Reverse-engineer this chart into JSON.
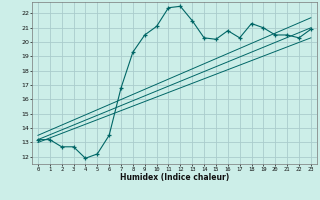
{
  "title": "",
  "xlabel": "Humidex (Indice chaleur)",
  "bg_color": "#cceee8",
  "grid_color": "#aacccc",
  "line_color": "#006666",
  "xlim": [
    -0.5,
    23.5
  ],
  "ylim": [
    11.5,
    22.8
  ],
  "xticks": [
    0,
    1,
    2,
    3,
    4,
    5,
    6,
    7,
    8,
    9,
    10,
    11,
    12,
    13,
    14,
    15,
    16,
    17,
    18,
    19,
    20,
    21,
    22,
    23
  ],
  "yticks": [
    12,
    13,
    14,
    15,
    16,
    17,
    18,
    19,
    20,
    21,
    22
  ],
  "main_x": [
    0,
    1,
    2,
    3,
    4,
    5,
    6,
    7,
    8,
    9,
    10,
    11,
    12,
    13,
    14,
    15,
    16,
    17,
    18,
    19,
    20,
    21,
    22,
    23
  ],
  "main_y": [
    13.2,
    13.2,
    12.7,
    12.7,
    11.9,
    12.2,
    13.5,
    16.8,
    19.3,
    20.5,
    21.1,
    22.4,
    22.5,
    21.5,
    20.3,
    20.2,
    20.8,
    20.3,
    21.3,
    21.0,
    20.5,
    20.5,
    20.3,
    20.9
  ],
  "line1_x": [
    0,
    23
  ],
  "line1_y": [
    13.0,
    20.3
  ],
  "line2_x": [
    0,
    23
  ],
  "line2_y": [
    13.2,
    21.0
  ],
  "line3_x": [
    0,
    23
  ],
  "line3_y": [
    13.5,
    21.7
  ]
}
